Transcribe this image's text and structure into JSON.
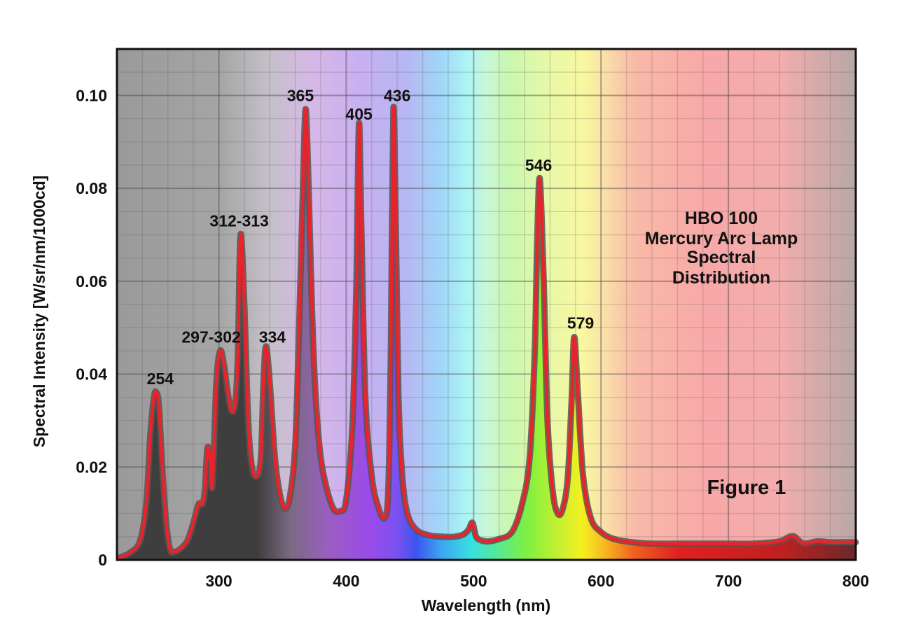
{
  "chart_data": {
    "type": "line",
    "title_lines": [
      "HBO 100",
      "Mercury Arc Lamp",
      "Spectral",
      "Distribution"
    ],
    "figure_label": "Figure 1",
    "xlabel": "Wavelength (nm)",
    "ylabel": "Spectral Intensity [W/sr/nm/1000cd]",
    "xlim": [
      220,
      800
    ],
    "ylim": [
      0,
      0.11
    ],
    "x_ticks": [
      300,
      400,
      500,
      600,
      700,
      800
    ],
    "y_ticks": [
      0,
      0.02,
      0.04,
      0.06,
      0.08,
      0.1
    ],
    "x_tick_labels": [
      "300",
      "400",
      "500",
      "600",
      "700",
      "800"
    ],
    "y_tick_labels": [
      "0",
      "0.02",
      "0.04",
      "0.06",
      "0.08",
      "0.10"
    ],
    "grid": true,
    "series_color": "#e8232a",
    "series": [
      {
        "x": [
          222,
          230,
          238,
          243,
          246,
          249,
          251,
          253,
          256,
          259,
          262,
          265,
          268,
          275,
          280,
          284,
          287,
          289,
          291,
          293,
          295,
          298,
          301,
          304,
          307,
          310,
          313,
          315,
          317,
          320,
          323,
          326,
          330,
          333,
          335,
          337,
          340,
          344,
          348,
          352,
          356,
          360,
          363,
          366,
          368,
          370,
          373,
          376,
          380,
          385,
          390,
          395,
          400,
          405,
          408,
          410,
          412,
          415,
          420,
          425,
          430,
          433,
          435,
          437,
          439,
          441,
          444,
          448,
          455,
          465,
          475,
          485,
          492,
          496,
          499,
          502,
          506,
          512,
          520,
          530,
          538,
          544,
          548,
          550,
          552,
          555,
          558,
          562,
          566,
          570,
          574,
          577,
          579,
          582,
          586,
          592,
          600,
          610,
          625,
          640,
          660,
          680,
          700,
          720,
          740,
          748,
          752,
          756,
          760,
          770,
          780,
          790,
          800
        ],
        "y": [
          0.0005,
          0.0015,
          0.004,
          0.012,
          0.026,
          0.035,
          0.036,
          0.033,
          0.018,
          0.007,
          0.002,
          0.0018,
          0.002,
          0.004,
          0.008,
          0.012,
          0.012,
          0.015,
          0.024,
          0.022,
          0.016,
          0.038,
          0.045,
          0.042,
          0.036,
          0.032,
          0.034,
          0.045,
          0.07,
          0.055,
          0.03,
          0.02,
          0.018,
          0.022,
          0.038,
          0.046,
          0.038,
          0.022,
          0.014,
          0.011,
          0.014,
          0.025,
          0.05,
          0.08,
          0.097,
          0.085,
          0.055,
          0.035,
          0.022,
          0.015,
          0.011,
          0.0105,
          0.013,
          0.03,
          0.06,
          0.094,
          0.07,
          0.035,
          0.018,
          0.0115,
          0.009,
          0.015,
          0.045,
          0.097,
          0.07,
          0.035,
          0.018,
          0.01,
          0.0065,
          0.0053,
          0.005,
          0.005,
          0.0055,
          0.0065,
          0.008,
          0.005,
          0.0042,
          0.004,
          0.0045,
          0.006,
          0.012,
          0.022,
          0.045,
          0.07,
          0.082,
          0.06,
          0.03,
          0.015,
          0.01,
          0.011,
          0.018,
          0.035,
          0.048,
          0.035,
          0.018,
          0.009,
          0.006,
          0.0045,
          0.0038,
          0.0035,
          0.0035,
          0.0035,
          0.0035,
          0.0035,
          0.004,
          0.005,
          0.005,
          0.004,
          0.0035,
          0.004,
          0.0038,
          0.0038,
          0.0038
        ]
      }
    ],
    "annotations": [
      {
        "text": "254",
        "x": 254,
        "y": 0.0375
      },
      {
        "text": "297-302",
        "x": 294,
        "y": 0.0465
      },
      {
        "text": "312-313",
        "x": 316,
        "y": 0.0715
      },
      {
        "text": "334",
        "x": 342,
        "y": 0.0465
      },
      {
        "text": "365",
        "x": 364,
        "y": 0.0985
      },
      {
        "text": "405",
        "x": 410,
        "y": 0.0945
      },
      {
        "text": "436",
        "x": 440,
        "y": 0.0985
      },
      {
        "text": "546",
        "x": 551,
        "y": 0.0835
      },
      {
        "text": "579",
        "x": 584,
        "y": 0.0495
      }
    ]
  }
}
